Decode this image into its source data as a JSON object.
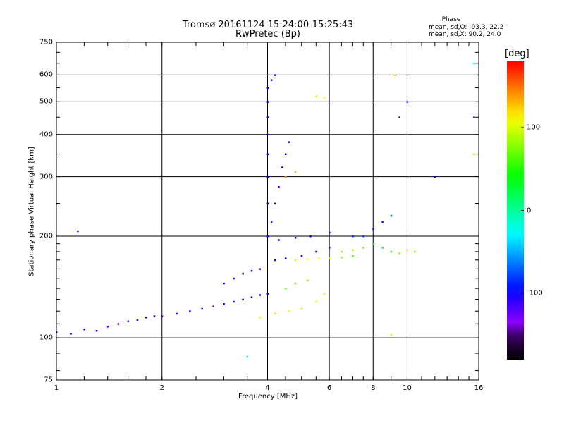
{
  "header": {
    "title_line1": "Tromsø 20161124 15:24:00-15:25:43",
    "title_line2": "RwPretec (Bp)",
    "phase_title": "Phase",
    "phase_o": "mean, sd,O: -93.3, 22.2",
    "phase_x": "mean, sd,X:  90.2, 24.0"
  },
  "colorbar": {
    "unit": "[deg]",
    "ticks": [
      "100",
      "0",
      "-100"
    ],
    "tick_values": [
      100,
      0,
      -100
    ],
    "range": [
      -180,
      180
    ]
  },
  "chart_data": {
    "type": "scatter",
    "title": "Tromsø 20161124 15:24:00-15:25:43",
    "subtitle": "RwPretec (Bp)",
    "xlabel": "Frequency [MHz]",
    "ylabel": "Stationary phase Virtual Height [km]",
    "x_scale": "log",
    "y_scale": "log",
    "xlim": [
      1,
      16
    ],
    "ylim": [
      75,
      750
    ],
    "x_ticks": [
      1,
      2,
      4,
      6,
      8,
      10,
      16
    ],
    "x_tick_labels": [
      "1",
      "2",
      "4",
      "6",
      "8",
      "10",
      "16"
    ],
    "y_ticks": [
      75,
      100,
      200,
      300,
      400,
      500,
      600,
      750
    ],
    "y_tick_labels": [
      "75",
      "100",
      "200",
      "300",
      "400",
      "500",
      "600",
      "750"
    ],
    "grid": true,
    "color_by": "phase [deg]",
    "series": [
      {
        "values": [
          [
            1.0,
            104,
            -110
          ],
          [
            1.1,
            103,
            -120
          ],
          [
            1.2,
            106,
            -115
          ],
          [
            1.3,
            105,
            -125
          ],
          [
            1.4,
            108,
            -120
          ],
          [
            1.5,
            110,
            -130
          ],
          [
            1.6,
            112,
            -120
          ],
          [
            1.7,
            113,
            -110
          ],
          [
            1.8,
            115,
            -100
          ],
          [
            1.9,
            116,
            -110
          ],
          [
            2.0,
            116,
            -115
          ],
          [
            2.2,
            118,
            -105
          ],
          [
            2.4,
            120,
            -110
          ],
          [
            2.6,
            122,
            -100
          ],
          [
            2.8,
            124,
            -105
          ],
          [
            3.0,
            126,
            -100
          ],
          [
            3.2,
            128,
            -110
          ],
          [
            3.4,
            130,
            -105
          ],
          [
            3.6,
            132,
            -100
          ],
          [
            3.8,
            134,
            -95
          ],
          [
            4.0,
            135,
            -100
          ]
        ]
      },
      {
        "values": [
          [
            3.0,
            145,
            -100
          ],
          [
            3.2,
            150,
            -105
          ],
          [
            3.4,
            155,
            -110
          ],
          [
            3.6,
            158,
            -115
          ],
          [
            3.8,
            160,
            -110
          ]
        ]
      },
      {
        "values": [
          [
            4.0,
            200,
            -110
          ],
          [
            4.0,
            250,
            -105
          ],
          [
            4.0,
            300,
            -100
          ],
          [
            4.0,
            350,
            -110
          ],
          [
            4.0,
            400,
            -105
          ],
          [
            4.0,
            450,
            -100
          ],
          [
            4.0,
            500,
            -95
          ],
          [
            4.0,
            550,
            -100
          ],
          [
            4.1,
            580,
            -105
          ],
          [
            4.2,
            600,
            -90
          ]
        ]
      },
      {
        "values": [
          [
            4.1,
            220,
            -100
          ],
          [
            4.2,
            250,
            -95
          ],
          [
            4.3,
            280,
            -100
          ],
          [
            4.4,
            320,
            -105
          ],
          [
            4.5,
            350,
            -95
          ],
          [
            4.6,
            380,
            -100
          ]
        ]
      },
      {
        "values": [
          [
            4.2,
            170,
            -100
          ],
          [
            4.5,
            172,
            -95
          ],
          [
            5.0,
            175,
            -100
          ],
          [
            5.5,
            180,
            -90
          ],
          [
            6.0,
            185,
            -85
          ]
        ]
      },
      {
        "values": [
          [
            4.3,
            195,
            -100
          ],
          [
            4.8,
            198,
            -95
          ],
          [
            5.3,
            200,
            -100
          ],
          [
            6.0,
            205,
            -90
          ],
          [
            7.0,
            200,
            -85
          ]
        ]
      },
      {
        "values": [
          [
            3.8,
            115,
            110
          ],
          [
            4.2,
            118,
            120
          ],
          [
            4.6,
            120,
            115
          ],
          [
            5.0,
            122,
            120
          ],
          [
            5.5,
            128,
            110
          ],
          [
            5.8,
            135,
            100
          ]
        ]
      },
      {
        "values": [
          [
            4.5,
            140,
            60
          ],
          [
            4.8,
            145,
            70
          ],
          [
            5.2,
            148,
            80
          ]
        ]
      },
      {
        "values": [
          [
            4.8,
            170,
            100
          ],
          [
            5.2,
            171,
            110
          ],
          [
            5.6,
            172,
            105
          ],
          [
            6.0,
            172,
            100
          ],
          [
            6.5,
            173,
            80
          ],
          [
            7.0,
            175,
            60
          ]
        ]
      },
      {
        "values": [
          [
            4.5,
            300,
            140
          ],
          [
            4.8,
            310,
            130
          ]
        ]
      },
      {
        "values": [
          [
            5.5,
            520,
            100
          ],
          [
            5.8,
            515,
            110
          ]
        ]
      },
      {
        "values": [
          [
            6.5,
            180,
            80
          ],
          [
            7.0,
            182,
            90
          ],
          [
            7.5,
            185,
            70
          ],
          [
            8.0,
            190,
            40
          ],
          [
            8.5,
            185,
            20
          ],
          [
            9.0,
            180,
            60
          ],
          [
            9.5,
            178,
            80
          ],
          [
            10.0,
            182,
            100
          ],
          [
            10.5,
            180,
            70
          ]
        ]
      },
      {
        "values": [
          [
            7.5,
            200,
            -80
          ],
          [
            8.0,
            210,
            -90
          ],
          [
            8.5,
            220,
            -100
          ],
          [
            9.0,
            230,
            -70
          ]
        ]
      },
      {
        "values": [
          [
            9.2,
            600,
            120
          ],
          [
            9.5,
            450,
            -100
          ],
          [
            10.0,
            500,
            -110
          ],
          [
            12.0,
            300,
            -100
          ],
          [
            15.5,
            650,
            -20
          ],
          [
            15.5,
            450,
            -90
          ],
          [
            15.5,
            350,
            80
          ]
        ]
      },
      {
        "values": [
          [
            1.15,
            207,
            -100
          ],
          [
            3.5,
            88,
            -20
          ],
          [
            9.0,
            102,
            100
          ]
        ]
      }
    ]
  }
}
